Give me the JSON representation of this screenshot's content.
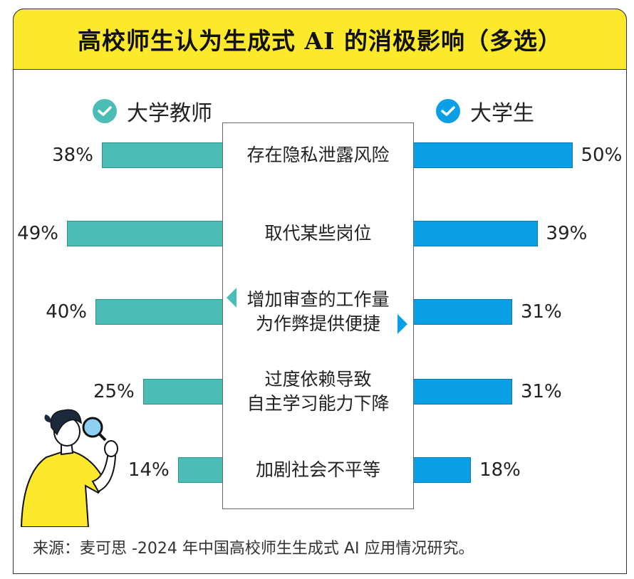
{
  "title": "高校师生认为生成式 AI 的消极影响（多选）",
  "legend": {
    "teacher_label": "大学教师",
    "student_label": "大学生"
  },
  "colors": {
    "title_bg": "#fde92b",
    "teacher": "#4cbcb6",
    "student": "#0b9fe6"
  },
  "icons": {
    "legend": "check-circle-icon",
    "illustration": "person-with-magnifier-illustration"
  },
  "chart_data": {
    "type": "bar",
    "orientation": "horizontal-diverging",
    "categories": [
      [
        "存在隐私泄露风险"
      ],
      [
        "取代某些岗位"
      ],
      [
        "增加审查的工作量",
        "为作弊提供便捷"
      ],
      [
        "过度依赖导致",
        "自主学习能力下降"
      ],
      [
        "加剧社会不平等"
      ]
    ],
    "series": [
      {
        "name": "大学教师",
        "values": [
          38,
          49,
          40,
          25,
          14
        ],
        "labels": [
          "38%",
          "49%",
          "40%",
          "25%",
          "14%"
        ]
      },
      {
        "name": "大学生",
        "values": [
          50,
          39,
          31,
          31,
          18
        ],
        "labels": [
          "50%",
          "39%",
          "31%",
          "31%",
          "18%"
        ]
      }
    ],
    "unit": "%"
  },
  "source": "来源：麦可思 -2024 年中国高校师生生成式 AI 应用情况研究。"
}
